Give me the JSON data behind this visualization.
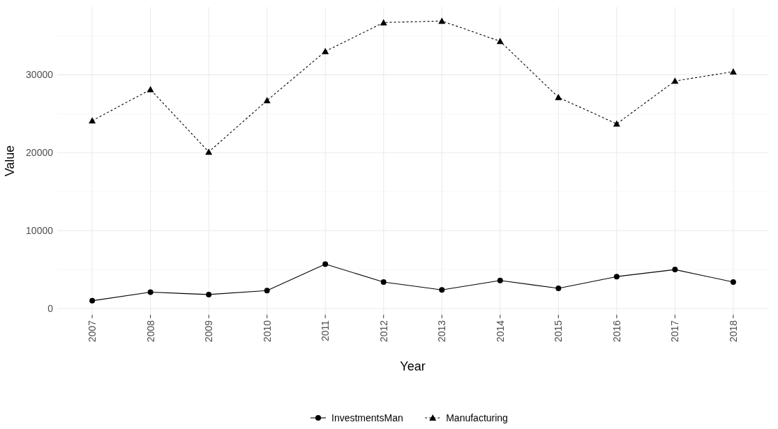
{
  "chart_data": {
    "type": "line",
    "xlabel": "Year",
    "ylabel": "Value",
    "categories": [
      "2007",
      "2008",
      "2009",
      "2010",
      "2011",
      "2012",
      "2013",
      "2014",
      "2015",
      "2016",
      "2017",
      "2018"
    ],
    "series": [
      {
        "name": "InvestmentsMan",
        "color": "#000000",
        "marker": "circle",
        "line_style": "solid",
        "values": [
          1000,
          2100,
          1800,
          2300,
          5700,
          3400,
          2400,
          3600,
          2600,
          4100,
          5000,
          3400
        ]
      },
      {
        "name": "Manufacturing",
        "color": "#000000",
        "marker": "triangle",
        "line_style": "dashed",
        "values": [
          24100,
          28100,
          20100,
          26700,
          33000,
          36700,
          36900,
          34300,
          27100,
          23700,
          29200,
          30400
        ]
      }
    ],
    "ylim": [
      -800,
      38700
    ],
    "yticks": [
      0,
      10000,
      20000,
      30000
    ],
    "grid": true,
    "legend": "bottom"
  }
}
